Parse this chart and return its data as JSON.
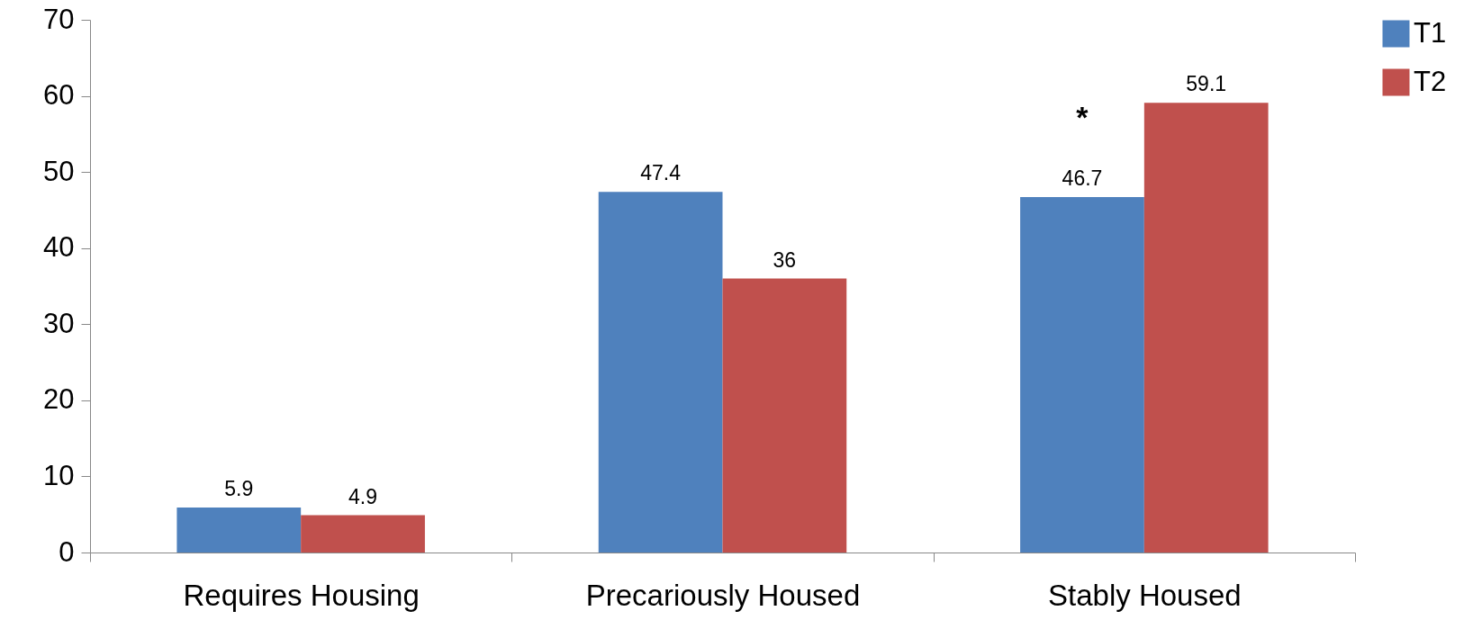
{
  "chart_data": {
    "type": "bar",
    "categories": [
      "Requires Housing",
      "Precariously Housed",
      "Stably Housed"
    ],
    "series": [
      {
        "name": "T1",
        "color": "#4f81bd",
        "values": [
          5.9,
          47.4,
          46.7
        ]
      },
      {
        "name": "T2",
        "color": "#c0504d",
        "values": [
          4.9,
          36,
          59.1
        ]
      }
    ],
    "ylim": [
      0,
      70
    ],
    "yticks": [
      0,
      10,
      20,
      30,
      40,
      50,
      60,
      70
    ],
    "data_labels": true,
    "legend": "right",
    "annotations": [
      {
        "text": "*",
        "x": "Stably Housed",
        "y": 57
      }
    ]
  }
}
